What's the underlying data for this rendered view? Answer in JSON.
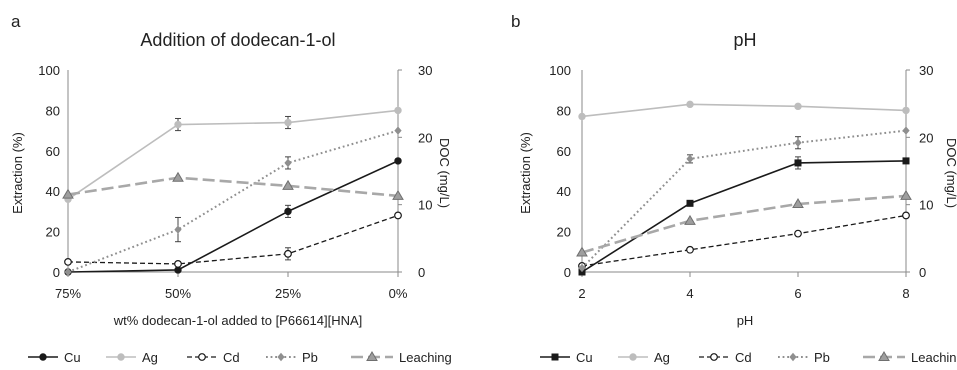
{
  "chart_data": [
    {
      "panel": "a",
      "type": "line",
      "title": "Addition of dodecan-1-ol",
      "xlabel": "wt% dodecan-1-ol added to [P66614][HNA]",
      "ylabel": "Extraction (%)",
      "y2label": "DOC (mg/L)",
      "categories": [
        "75%",
        "50%",
        "25%",
        "0%"
      ],
      "ylim": [
        0,
        100
      ],
      "yticks": [
        "0",
        "20",
        "40",
        "60",
        "80",
        "100"
      ],
      "y2lim": [
        0,
        30
      ],
      "y2ticks": [
        "0",
        "10",
        "20",
        "30"
      ],
      "grid": false,
      "legend_position": "bottom",
      "series": [
        {
          "name": "Cu",
          "axis": "left",
          "values": [
            0,
            1,
            30,
            55
          ],
          "err": [
            0,
            0,
            3,
            0
          ]
        },
        {
          "name": "Ag",
          "axis": "left",
          "values": [
            36,
            73,
            74,
            80
          ],
          "err": [
            0,
            3,
            3,
            0
          ]
        },
        {
          "name": "Cd",
          "axis": "left",
          "values": [
            5,
            4,
            9,
            28
          ],
          "err": [
            0,
            0,
            3,
            0
          ]
        },
        {
          "name": "Pb",
          "axis": "left",
          "values": [
            0,
            21,
            54,
            70
          ],
          "err": [
            0,
            6,
            3,
            0
          ]
        },
        {
          "name": "Leaching",
          "axis": "right",
          "values": [
            11.5,
            14,
            12.8,
            11.3
          ],
          "err": [
            0,
            0,
            0,
            0
          ]
        }
      ]
    },
    {
      "panel": "b",
      "type": "line",
      "title": "pH",
      "xlabel": "pH",
      "ylabel": "Extraction (%)",
      "y2label": "DOC (mg/L)",
      "categories": [
        "2",
        "4",
        "6",
        "8"
      ],
      "ylim": [
        0,
        100
      ],
      "yticks": [
        "0",
        "20",
        "40",
        "60",
        "80",
        "100"
      ],
      "y2lim": [
        0,
        30
      ],
      "y2ticks": [
        "0",
        "10",
        "20",
        "30"
      ],
      "grid": false,
      "legend_position": "bottom",
      "series": [
        {
          "name": "Cu",
          "axis": "left",
          "values": [
            0,
            34,
            54,
            55
          ],
          "err": [
            0,
            0,
            3,
            0
          ]
        },
        {
          "name": "Ag",
          "axis": "left",
          "values": [
            77,
            83,
            82,
            80
          ],
          "err": [
            0,
            0,
            0,
            0
          ]
        },
        {
          "name": "Cd",
          "axis": "left",
          "values": [
            3,
            11,
            19,
            28
          ],
          "err": [
            0,
            0,
            0,
            0
          ]
        },
        {
          "name": "Pb",
          "axis": "left",
          "values": [
            2,
            56,
            64,
            70
          ],
          "err": [
            0,
            2,
            3,
            0
          ]
        },
        {
          "name": "Leaching",
          "axis": "right",
          "values": [
            2.9,
            7.6,
            10.1,
            11.3
          ],
          "err": [
            0,
            0,
            0,
            0
          ]
        }
      ]
    }
  ],
  "styles": {
    "Cu": {
      "color": "#1a1a1a",
      "dash": "",
      "width": 1.6
    },
    "Ag": {
      "color": "#bdbdbd",
      "dash": "",
      "width": 1.6
    },
    "Cd": {
      "color": "#1a1a1a",
      "dash": "5,3",
      "width": 1.3
    },
    "Pb": {
      "color": "#8f8f8f",
      "dash": "1.8,2.8",
      "width": 2
    },
    "Leaching": {
      "color": "#a8a8a8",
      "dash": "12,5",
      "width": 2.6
    }
  },
  "markers": {
    "a": {
      "Cu": "circle",
      "Ag": "circle",
      "Cd": "circle-open",
      "Pb": "diamond",
      "Leaching": "triangle"
    },
    "b": {
      "Cu": "square",
      "Ag": "circle",
      "Cd": "circle-open",
      "Pb": "diamond",
      "Leaching": "triangle"
    }
  }
}
